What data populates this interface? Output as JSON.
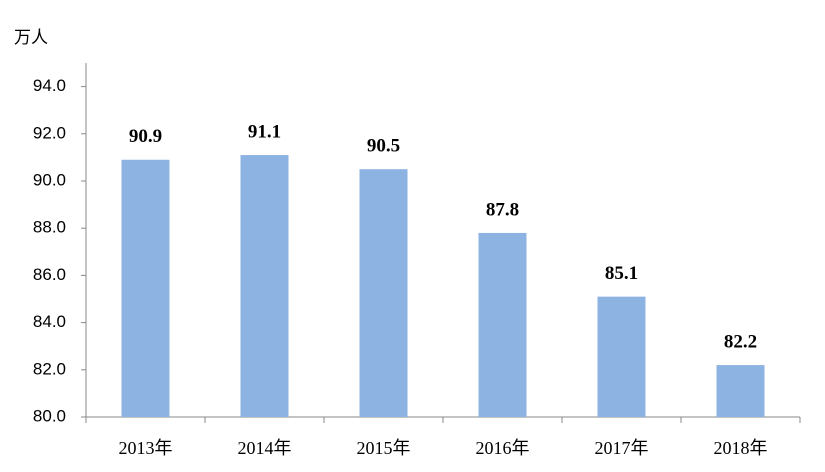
{
  "chart_data": {
    "type": "bar",
    "y_label": "万人",
    "categories": [
      "2013年",
      "2014年",
      "2015年",
      "2016年",
      "2017年",
      "2018年"
    ],
    "values": [
      90.9,
      91.1,
      90.5,
      87.8,
      85.1,
      82.2
    ],
    "color": "#8db3e2",
    "ylim": [
      80,
      95
    ],
    "yticks": [
      {
        "value": 80,
        "label": "80.0"
      },
      {
        "value": 82,
        "label": "82.0"
      },
      {
        "value": 84,
        "label": "84.0"
      },
      {
        "value": 86,
        "label": "86.0"
      },
      {
        "value": 88,
        "label": "88.0"
      },
      {
        "value": 90,
        "label": "90.0"
      },
      {
        "value": 92,
        "label": "92.0"
      },
      {
        "value": 94,
        "label": "94.0"
      }
    ],
    "grid": false
  }
}
